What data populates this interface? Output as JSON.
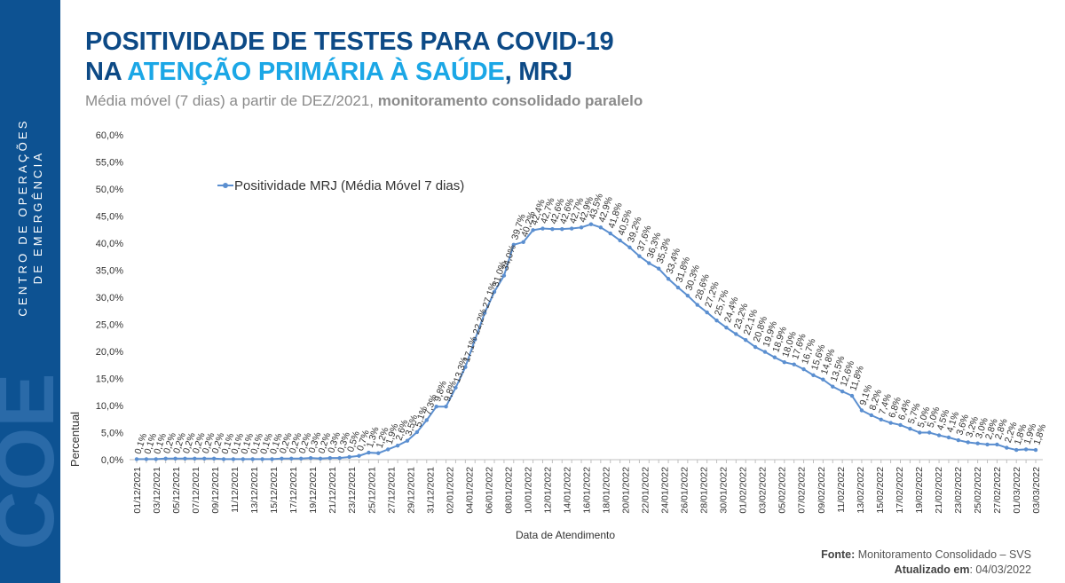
{
  "sidebar": {
    "line1": "CENTRO DE OPERAÇÕES",
    "line2": "DE EMERGÊNCIA",
    "logo_text": "COE"
  },
  "header": {
    "title_line1": "POSITIVIDADE DE TESTES PARA COVID-19",
    "title_line2_prefix": "NA ",
    "title_line2_highlight": "ATENÇÃO PRIMÁRIA À SAÚDE",
    "title_line2_suffix": ", MRJ",
    "subtitle_normal": "Média móvel (7 dias) a partir de DEZ/2021, ",
    "subtitle_bold": "monitoramento consolidado paralelo"
  },
  "footer": {
    "source_label": "Fonte:",
    "source_value": " Monitoramento Consolidado – SVS",
    "updated_label": "Atualizado em",
    "updated_value": ": 04/03/2022"
  },
  "colors": {
    "sidebar": "#0d5292",
    "title": "#0d4a86",
    "title_highlight": "#1ba7e6",
    "line": "#5b8fd0"
  },
  "chart_data": {
    "type": "line",
    "xlabel": "Data de Atendimento",
    "ylabel": "Percentual",
    "ylim": [
      0,
      60
    ],
    "y_ticks": [
      "0,0%",
      "5,0%",
      "10,0%",
      "15,0%",
      "20,0%",
      "25,0%",
      "30,0%",
      "35,0%",
      "40,0%",
      "45,0%",
      "50,0%",
      "55,0%",
      "60,0%"
    ],
    "grid": false,
    "legend_position": "top-left",
    "x_tick_labels": [
      "01/12/2021",
      "03/12/2021",
      "05/12/2021",
      "07/12/2021",
      "09/12/2021",
      "11/12/2021",
      "13/12/2021",
      "15/12/2021",
      "17/12/2021",
      "19/12/2021",
      "21/12/2021",
      "23/12/2021",
      "25/12/2021",
      "27/12/2021",
      "29/12/2021",
      "31/12/2021",
      "02/01/2022",
      "04/01/2022",
      "06/01/2022",
      "08/01/2022",
      "10/01/2022",
      "12/01/2022",
      "14/01/2022",
      "16/01/2022",
      "18/01/2022",
      "20/01/2022",
      "22/01/2022",
      "24/01/2022",
      "26/01/2022",
      "28/01/2022",
      "30/01/2022",
      "01/02/2022",
      "03/02/2022",
      "05/02/2022",
      "07/02/2022",
      "09/02/2022",
      "11/02/2022",
      "13/02/2022",
      "15/02/2022",
      "17/02/2022",
      "19/02/2022",
      "21/02/2022",
      "23/02/2022",
      "25/02/2022",
      "27/02/2022",
      "01/03/2022",
      "03/03/2022"
    ],
    "series": [
      {
        "name": "Positividade MRJ (Média Móvel 7 dias)",
        "values": [
          0.1,
          0.1,
          0.1,
          0.2,
          0.2,
          0.2,
          0.2,
          0.2,
          0.2,
          0.1,
          0.1,
          0.1,
          0.1,
          0.1,
          0.1,
          0.2,
          0.2,
          0.2,
          0.3,
          0.2,
          0.3,
          0.3,
          0.5,
          0.7,
          1.3,
          1.2,
          1.9,
          2.6,
          3.5,
          5.1,
          7.3,
          9.8,
          9.8,
          13.3,
          17.1,
          22.2,
          27.1,
          31.0,
          34.0,
          39.7,
          40.2,
          42.4,
          42.7,
          42.6,
          42.6,
          42.7,
          42.9,
          43.5,
          42.9,
          41.8,
          40.5,
          39.2,
          37.6,
          36.3,
          35.3,
          33.4,
          31.8,
          30.3,
          28.6,
          27.2,
          25.7,
          24.4,
          23.2,
          22.1,
          20.8,
          19.9,
          18.9,
          18.0,
          17.6,
          16.7,
          15.6,
          14.8,
          13.5,
          12.6,
          11.8,
          9.1,
          8.2,
          7.4,
          6.8,
          6.4,
          5.7,
          5.0,
          5.0,
          4.5,
          4.1,
          3.6,
          3.2,
          3.0,
          2.8,
          2.8,
          2.2,
          1.8,
          1.9,
          1.8
        ],
        "labels": [
          "0,1%",
          "0,1%",
          "0,1%",
          "0,2%",
          "0,2%",
          "0,2%",
          "0,2%",
          "0,2%",
          "0,2%",
          "0,1%",
          "0,1%",
          "0,1%",
          "0,1%",
          "0,1%",
          "0,1%",
          "0,2%",
          "0,2%",
          "0,2%",
          "0,3%",
          "0,2%",
          "0,3%",
          "0,3%",
          "0,5%",
          "0,7%",
          "1,3%",
          "1,2%",
          "1,9%",
          "2,6%",
          "3,5%",
          "5,1%",
          "7,3%",
          "9,8%",
          "9,8%",
          "13,3%",
          "17,1%",
          "22,2%",
          "27,1%",
          "31,0%",
          "34,0%",
          "39,7%",
          "40,2%",
          "42,4%",
          "42,7%",
          "42,6%",
          "42,6%",
          "42,7%",
          "42,9%",
          "43,5%",
          "42,9%",
          "41,8%",
          "40,5%",
          "39,2%",
          "37,6%",
          "36,3%",
          "35,3%",
          "33,4%",
          "31,8%",
          "30,3%",
          "28,6%",
          "27,2%",
          "25,7%",
          "24,4%",
          "23,2%",
          "22,1%",
          "20,8%",
          "19,9%",
          "18,9%",
          "18,0%",
          "17,6%",
          "16,7%",
          "15,6%",
          "14,8%",
          "13,5%",
          "12,6%",
          "11,8%",
          "9,1%",
          "8,2%",
          "7,4%",
          "6,8%",
          "6,4%",
          "5,7%",
          "5,0%",
          "5,0%",
          "4,5%",
          "4,1%",
          "3,6%",
          "3,2%",
          "3,0%",
          "2,8%",
          "2,8%",
          "2,2%",
          "1,8%",
          "1,9%",
          "1,8%"
        ]
      }
    ]
  }
}
